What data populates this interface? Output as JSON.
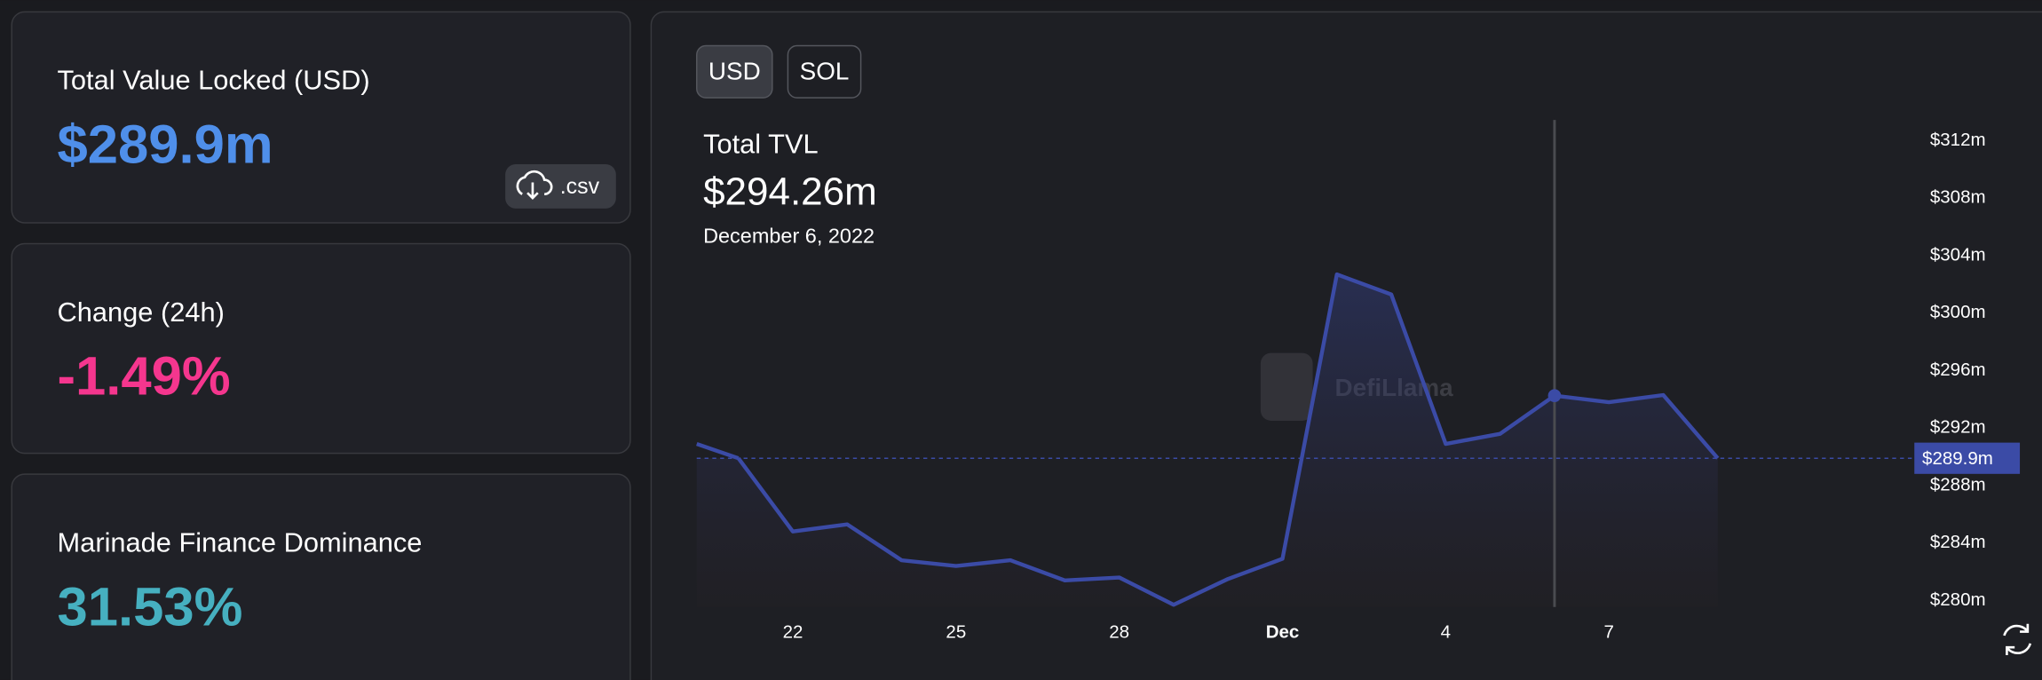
{
  "stats": [
    {
      "label": "Total Value Locked (USD)",
      "value": "$289.9m"
    },
    {
      "label": "Change (24h)",
      "value": "-1.49%"
    },
    {
      "label": "Marinade Finance Dominance",
      "value": "31.53%"
    }
  ],
  "csv_button": ".csv",
  "denominations": [
    "USD",
    "SOL"
  ],
  "chart_data": {
    "type": "line",
    "watermark": "DefiLlama",
    "categories": [
      null,
      "22",
      null,
      null,
      "25",
      null,
      null,
      "28",
      null,
      null,
      "Dec",
      null,
      null,
      "4",
      null,
      null,
      "7",
      null,
      null
    ],
    "series": [
      {
        "name": "Total TVL",
        "color": "#3b4ba6",
        "values": [
          289.9,
          284.8,
          285.3,
          282.8,
          282.4,
          282.8,
          281.4,
          281.6,
          279.7,
          281.5,
          282.9,
          302.7,
          301.3,
          290.9,
          291.6,
          294.26,
          293.8,
          294.3,
          289.9
        ]
      }
    ],
    "ylim": [
      279.55,
      313.45
    ],
    "yticks": [
      {
        "value": 280,
        "label": "$280m"
      },
      {
        "value": 284,
        "label": "$284m"
      },
      {
        "value": 288,
        "label": "$288m"
      },
      {
        "value": 292,
        "label": "$292m"
      },
      {
        "value": 296,
        "label": "$296m"
      },
      {
        "value": 300,
        "label": "$300m"
      },
      {
        "value": 304,
        "label": "$304m"
      },
      {
        "value": 308,
        "label": "$308m"
      },
      {
        "value": 312,
        "label": "$312m"
      }
    ],
    "tooltip": {
      "title": "Total TVL",
      "value": 294.26,
      "label": "$294.26m",
      "date": "December 6, 2022"
    },
    "current": {
      "value": 289.9,
      "label": "$289.9m"
    }
  }
}
